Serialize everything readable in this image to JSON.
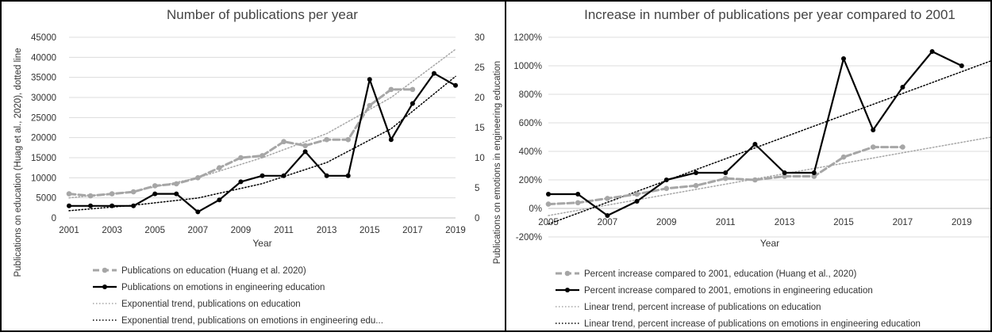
{
  "chart_data": [
    {
      "type": "line",
      "title": "Number of publications per year",
      "xlabel": "Year",
      "ylabel": "Publications on education (Huag et al., 2020), dotted line",
      "y2label": "Publications on emotions in engineering education",
      "x": [
        2001,
        2002,
        2003,
        2004,
        2005,
        2006,
        2007,
        2008,
        2009,
        2010,
        2011,
        2012,
        2013,
        2014,
        2015,
        2016,
        2017,
        2018,
        2019
      ],
      "xticks": [
        "2001",
        "2003",
        "2005",
        "2007",
        "2009",
        "2011",
        "2013",
        "2015",
        "2017",
        "2019"
      ],
      "ylim": [
        0,
        45000
      ],
      "yticks": [
        "0",
        "5000",
        "10000",
        "15000",
        "20000",
        "25000",
        "30000",
        "35000",
        "40000",
        "45000"
      ],
      "y2lim": [
        0,
        30
      ],
      "y2ticks": [
        "0",
        "5",
        "10",
        "15",
        "20",
        "25",
        "30"
      ],
      "grid": true,
      "legend_position": "bottom",
      "series": [
        {
          "name": "Publications on education (Huang et al. 2020)",
          "axis": "left",
          "style": "dashed-markers",
          "color": "#a6a6a6",
          "x": [
            2001,
            2002,
            2003,
            2004,
            2005,
            2006,
            2007,
            2008,
            2009,
            2010,
            2011,
            2012,
            2013,
            2014,
            2015,
            2016,
            2017
          ],
          "values": [
            6000,
            5500,
            6000,
            6500,
            8000,
            8500,
            10000,
            12500,
            15000,
            15500,
            19000,
            18000,
            19500,
            19500,
            28000,
            32000,
            32000
          ]
        },
        {
          "name": "Publications on emotions in engineering education",
          "axis": "right",
          "style": "solid-markers",
          "color": "#000000",
          "x": [
            2001,
            2002,
            2003,
            2004,
            2005,
            2006,
            2007,
            2008,
            2009,
            2010,
            2011,
            2012,
            2013,
            2014,
            2015,
            2016,
            2017,
            2018,
            2019
          ],
          "values": [
            2,
            2,
            2,
            2,
            4,
            4,
            1,
            3,
            6,
            7,
            7,
            11,
            7,
            7,
            23,
            13,
            19,
            24,
            22
          ]
        },
        {
          "name": "Exponential trend, publications on education",
          "axis": "left",
          "style": "dotted-trend",
          "color": "#a6a6a6",
          "x": [
            2001,
            2004,
            2007,
            2010,
            2013,
            2016,
            2019
          ],
          "values": [
            5000,
            6600,
            10000,
            15000,
            21000,
            30000,
            42000
          ]
        },
        {
          "name": "Exponential trend, publications on emotions in engineering edu...",
          "axis": "right",
          "style": "dotted-trend",
          "color": "#000000",
          "x": [
            2001,
            2004,
            2007,
            2010,
            2013,
            2016,
            2019
          ],
          "values": [
            1.2,
            2.1,
            3.3,
            5.7,
            9.2,
            14.8,
            23.5
          ]
        }
      ]
    },
    {
      "type": "line",
      "title": "Increase in number of publications per year compared to 2001",
      "xlabel": "Year",
      "ylabel": "",
      "x": [
        2005,
        2006,
        2007,
        2008,
        2009,
        2010,
        2011,
        2012,
        2013,
        2014,
        2015,
        2016,
        2017,
        2018,
        2019
      ],
      "xticks": [
        "2005",
        "2007",
        "2009",
        "2011",
        "2013",
        "2015",
        "2017",
        "2019"
      ],
      "ylim": [
        -200,
        1200
      ],
      "yticks": [
        "-200%",
        "0%",
        "200%",
        "400%",
        "600%",
        "800%",
        "1000%",
        "1200%"
      ],
      "grid": true,
      "legend_position": "bottom",
      "series": [
        {
          "name": "Percent increase compared to 2001, education (Huang et al., 2020)",
          "style": "dashed-markers",
          "color": "#a6a6a6",
          "x": [
            2005,
            2006,
            2007,
            2008,
            2009,
            2010,
            2011,
            2012,
            2013,
            2014,
            2015,
            2016,
            2017
          ],
          "values": [
            30,
            40,
            70,
            100,
            140,
            160,
            210,
            200,
            225,
            225,
            360,
            430,
            430
          ]
        },
        {
          "name": "Percent increase compared to 2001, emotions in engineering education",
          "style": "solid-markers",
          "color": "#000000",
          "x": [
            2005,
            2006,
            2007,
            2008,
            2009,
            2010,
            2011,
            2012,
            2013,
            2014,
            2015,
            2016,
            2017,
            2018,
            2019
          ],
          "values": [
            100,
            100,
            -50,
            50,
            200,
            250,
            250,
            450,
            250,
            250,
            1050,
            550,
            850,
            1100,
            1000
          ]
        },
        {
          "name": "Linear trend, percent increase of publications on education",
          "style": "dotted-trend",
          "color": "#a6a6a6",
          "x": [
            2005,
            2020
          ],
          "values": [
            -50,
            500
          ]
        },
        {
          "name": "Linear trend, percent increase of publications on emotions in engineering education",
          "style": "dotted-trend",
          "color": "#000000",
          "x": [
            2005,
            2020
          ],
          "values": [
            -110,
            1035
          ]
        }
      ]
    }
  ]
}
